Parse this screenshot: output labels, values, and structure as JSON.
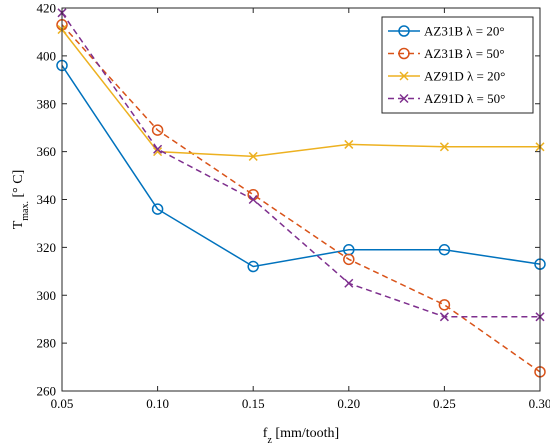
{
  "chart_data": {
    "type": "line",
    "title": "",
    "xlabel_main": "f",
    "xlabel_sub": "z",
    "xlabel_rest": " [mm/tooth]",
    "ylabel_main": "T",
    "ylabel_sub": "max.",
    "ylabel_rest": " [° C]",
    "x": [
      0.05,
      0.1,
      0.15,
      0.2,
      0.25,
      0.3
    ],
    "x_tick_labels": [
      "0.05",
      "0.10",
      "0.15",
      "0.20",
      "0.25",
      "0.30"
    ],
    "xlim": [
      0.05,
      0.3
    ],
    "ylim": [
      260,
      420
    ],
    "y_ticks": [
      260,
      280,
      300,
      320,
      340,
      360,
      380,
      400,
      420
    ],
    "y_tick_labels": [
      "260",
      "280",
      "300",
      "320",
      "340",
      "360",
      "380",
      "400",
      "420"
    ],
    "grid": false,
    "legend_position": "top-right",
    "series": [
      {
        "name": "AZ31B λ = 20°",
        "color": "#0072BD",
        "dash": "solid",
        "marker": "circle",
        "values": [
          396,
          336,
          312,
          319,
          319,
          313
        ]
      },
      {
        "name": "AZ31B λ = 50°",
        "color": "#D95319",
        "dash": "dashed",
        "marker": "circle",
        "values": [
          413,
          369,
          342,
          315,
          296,
          268
        ]
      },
      {
        "name": "AZ91D λ = 20°",
        "color": "#EDB120",
        "dash": "solid",
        "marker": "x",
        "values": [
          411,
          360,
          358,
          363,
          362,
          362
        ]
      },
      {
        "name": "AZ91D λ = 50°",
        "color": "#7E2F8E",
        "dash": "dashed",
        "marker": "x",
        "values": [
          418,
          361,
          340,
          305,
          291,
          291
        ]
      }
    ]
  }
}
